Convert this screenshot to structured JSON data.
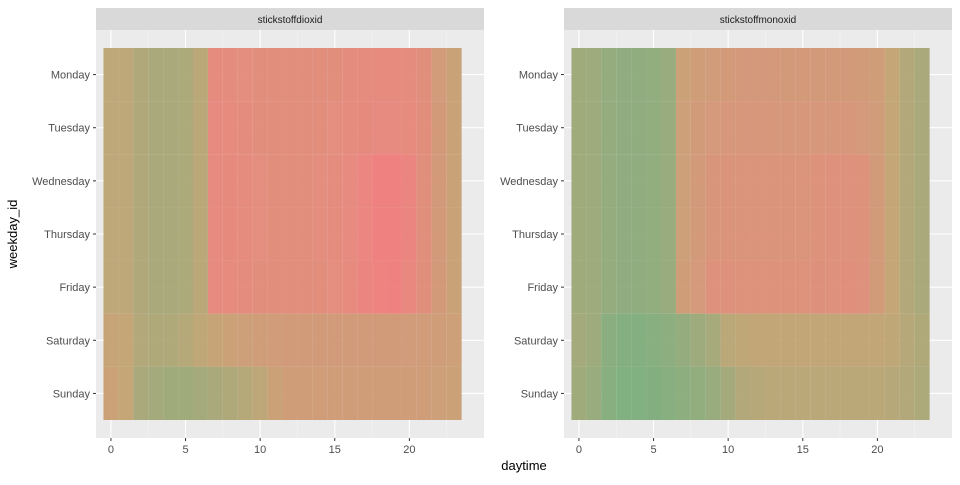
{
  "chart_data": {
    "type": "heatmap",
    "xlabel": "daytime",
    "ylabel": "weekday_id",
    "x_ticks": [
      0,
      5,
      10,
      15,
      20
    ],
    "x_range": [
      -1,
      25
    ],
    "weekdays": [
      "Monday",
      "Tuesday",
      "Wednesday",
      "Thursday",
      "Friday",
      "Saturday",
      "Sunday"
    ],
    "hours": [
      0,
      1,
      2,
      3,
      4,
      5,
      6,
      7,
      8,
      9,
      10,
      11,
      12,
      13,
      14,
      15,
      16,
      17,
      18,
      19,
      20,
      21,
      22,
      23
    ],
    "color_scale": {
      "low": "#76ab78",
      "mid": "#c2a06e",
      "high": "#f27878"
    },
    "panels": [
      {
        "name": "stickstoffdioxid",
        "values": [
          [
            0.45,
            0.45,
            0.35,
            0.3,
            0.3,
            0.32,
            0.42,
            0.85,
            0.84,
            0.83,
            0.82,
            0.82,
            0.82,
            0.82,
            0.82,
            0.82,
            0.84,
            0.85,
            0.86,
            0.86,
            0.84,
            0.8,
            0.65,
            0.55
          ],
          [
            0.45,
            0.45,
            0.35,
            0.3,
            0.3,
            0.32,
            0.42,
            0.88,
            0.86,
            0.84,
            0.82,
            0.82,
            0.82,
            0.82,
            0.82,
            0.83,
            0.85,
            0.87,
            0.88,
            0.88,
            0.86,
            0.82,
            0.66,
            0.55
          ],
          [
            0.45,
            0.45,
            0.35,
            0.3,
            0.3,
            0.32,
            0.42,
            0.88,
            0.87,
            0.85,
            0.83,
            0.82,
            0.82,
            0.82,
            0.83,
            0.84,
            0.88,
            0.93,
            0.97,
            0.97,
            0.92,
            0.8,
            0.66,
            0.55
          ],
          [
            0.45,
            0.45,
            0.35,
            0.3,
            0.3,
            0.32,
            0.42,
            0.88,
            0.87,
            0.85,
            0.83,
            0.82,
            0.82,
            0.82,
            0.83,
            0.84,
            0.88,
            0.93,
            0.97,
            0.97,
            0.92,
            0.8,
            0.66,
            0.55
          ],
          [
            0.45,
            0.45,
            0.35,
            0.3,
            0.3,
            0.32,
            0.42,
            0.88,
            0.86,
            0.84,
            0.82,
            0.82,
            0.82,
            0.82,
            0.82,
            0.83,
            0.86,
            0.92,
            0.96,
            0.97,
            0.9,
            0.8,
            0.66,
            0.55
          ],
          [
            0.52,
            0.5,
            0.36,
            0.34,
            0.34,
            0.38,
            0.46,
            0.52,
            0.56,
            0.58,
            0.6,
            0.62,
            0.64,
            0.64,
            0.64,
            0.64,
            0.64,
            0.64,
            0.64,
            0.64,
            0.63,
            0.62,
            0.6,
            0.58
          ],
          [
            0.56,
            0.5,
            0.3,
            0.26,
            0.24,
            0.24,
            0.26,
            0.3,
            0.34,
            0.38,
            0.44,
            0.56,
            0.6,
            0.6,
            0.6,
            0.6,
            0.6,
            0.6,
            0.6,
            0.6,
            0.6,
            0.6,
            0.58,
            0.56
          ]
        ]
      },
      {
        "name": "stickstoffmonoxid",
        "values": [
          [
            0.24,
            0.22,
            0.16,
            0.12,
            0.12,
            0.14,
            0.18,
            0.56,
            0.6,
            0.63,
            0.66,
            0.67,
            0.67,
            0.67,
            0.66,
            0.66,
            0.66,
            0.66,
            0.66,
            0.64,
            0.6,
            0.5,
            0.36,
            0.3
          ],
          [
            0.24,
            0.22,
            0.16,
            0.12,
            0.12,
            0.14,
            0.18,
            0.58,
            0.64,
            0.68,
            0.7,
            0.7,
            0.7,
            0.7,
            0.7,
            0.7,
            0.7,
            0.7,
            0.7,
            0.68,
            0.62,
            0.5,
            0.36,
            0.3
          ],
          [
            0.24,
            0.22,
            0.16,
            0.12,
            0.12,
            0.14,
            0.18,
            0.58,
            0.66,
            0.72,
            0.74,
            0.74,
            0.74,
            0.74,
            0.74,
            0.74,
            0.76,
            0.78,
            0.78,
            0.76,
            0.64,
            0.5,
            0.36,
            0.3
          ],
          [
            0.24,
            0.22,
            0.16,
            0.12,
            0.12,
            0.14,
            0.18,
            0.58,
            0.66,
            0.72,
            0.74,
            0.74,
            0.74,
            0.74,
            0.74,
            0.74,
            0.76,
            0.78,
            0.78,
            0.76,
            0.64,
            0.5,
            0.36,
            0.3
          ],
          [
            0.24,
            0.22,
            0.16,
            0.12,
            0.12,
            0.14,
            0.18,
            0.6,
            0.68,
            0.78,
            0.78,
            0.76,
            0.76,
            0.76,
            0.76,
            0.76,
            0.77,
            0.78,
            0.8,
            0.78,
            0.64,
            0.5,
            0.36,
            0.3
          ],
          [
            0.26,
            0.22,
            0.08,
            0.04,
            0.04,
            0.06,
            0.1,
            0.16,
            0.22,
            0.28,
            0.42,
            0.46,
            0.48,
            0.48,
            0.48,
            0.48,
            0.48,
            0.48,
            0.48,
            0.48,
            0.48,
            0.46,
            0.4,
            0.34
          ],
          [
            0.24,
            0.18,
            0.06,
            0.02,
            0.02,
            0.03,
            0.06,
            0.1,
            0.14,
            0.18,
            0.26,
            0.36,
            0.4,
            0.42,
            0.42,
            0.42,
            0.42,
            0.42,
            0.42,
            0.42,
            0.42,
            0.4,
            0.36,
            0.32
          ]
        ]
      }
    ]
  }
}
